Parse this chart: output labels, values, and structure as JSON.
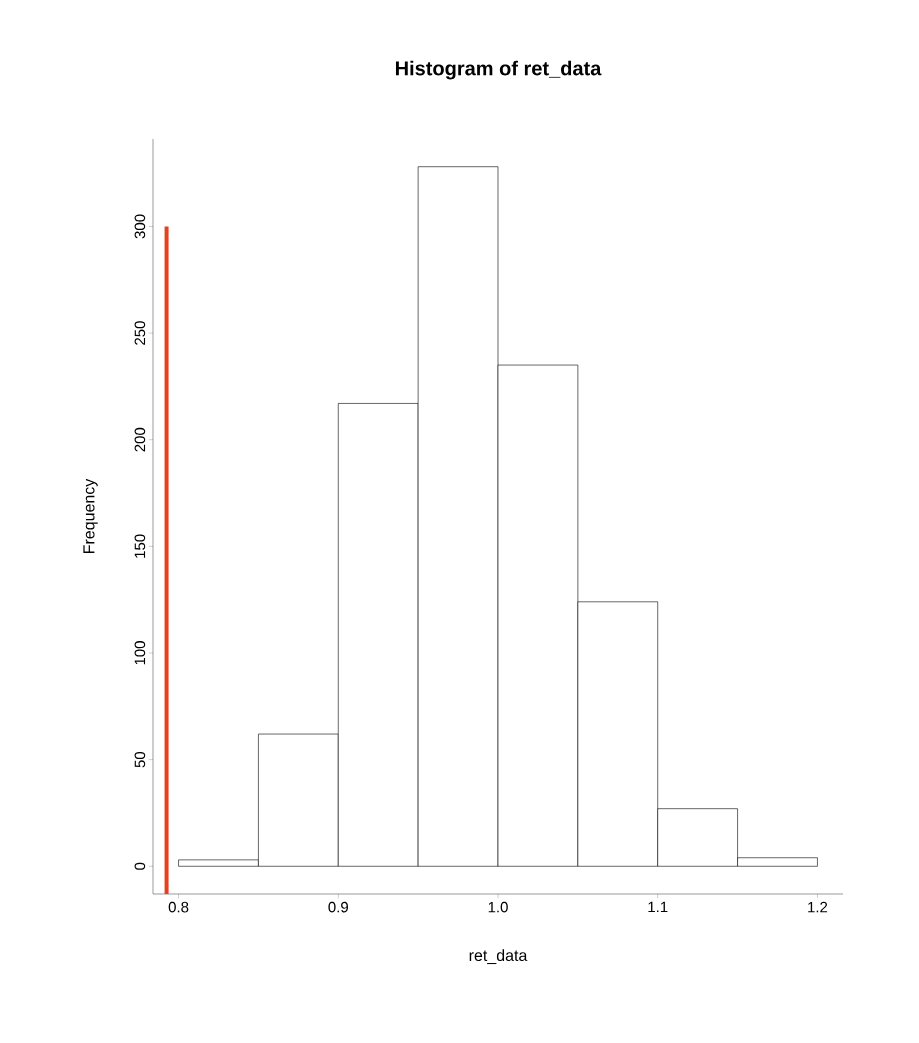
{
  "chart_data": {
    "type": "histogram",
    "title": "Histogram of ret_data",
    "xlabel": "ret_data",
    "ylabel": "Frequency",
    "bins": [
      0.8,
      0.85,
      0.9,
      0.95,
      1.0,
      1.05,
      1.1,
      1.15,
      1.2
    ],
    "values": [
      3,
      62,
      217,
      328,
      235,
      124,
      27,
      4
    ],
    "color": "#ffffff",
    "xlim": [
      0.784,
      1.216
    ],
    "ylim": [
      -13,
      341
    ],
    "xticks": [
      {
        "value": 0.8,
        "label": "0.8"
      },
      {
        "value": 0.9,
        "label": "0.9"
      },
      {
        "value": 1.0,
        "label": "1.0"
      },
      {
        "value": 1.1,
        "label": "1.1"
      },
      {
        "value": 1.2,
        "label": "1.2"
      }
    ],
    "yticks": [
      0,
      50,
      100,
      150,
      200,
      250,
      300
    ],
    "ref_lines": [
      {
        "axis": "x",
        "value": 0.7925,
        "color": "#e8401c"
      }
    ],
    "grid": false
  }
}
